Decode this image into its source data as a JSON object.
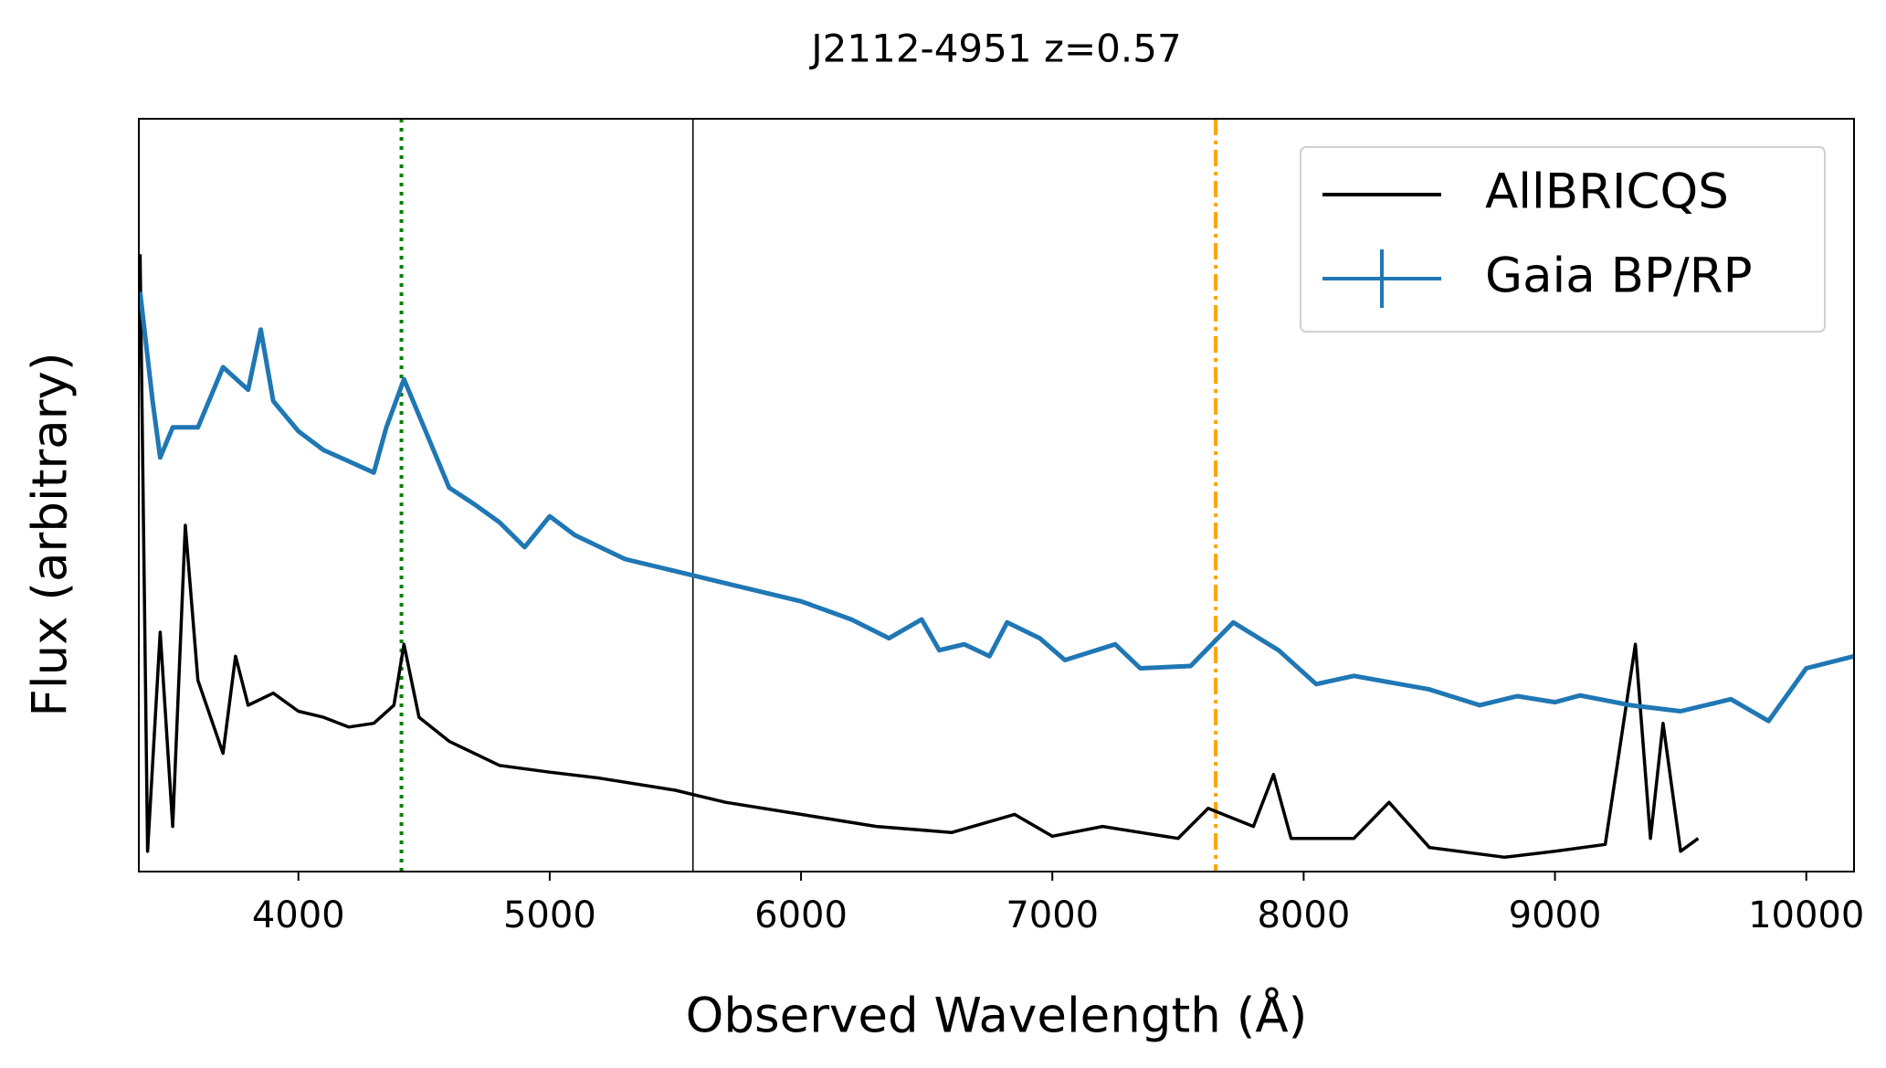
{
  "chart_data": {
    "type": "line",
    "title": "J2112-4951 z=0.57",
    "xlabel": "Observed Wavelength (Å)",
    "ylabel": "Flux (arbitrary)",
    "xlim": [
      3365,
      10190
    ],
    "ylim": [
      0,
      1
    ],
    "xticks": [
      4000,
      5000,
      6000,
      7000,
      8000,
      9000,
      10000
    ],
    "legend": "upper right",
    "vlines": [
      {
        "x": 4410,
        "color": "#008000",
        "style": "dotted"
      },
      {
        "x": 5570,
        "color": "#000000",
        "style": "solid"
      },
      {
        "x": 7650,
        "color": "#ffa500",
        "style": "dashdot"
      }
    ],
    "series": [
      {
        "name": "AllBRICQS",
        "color": "#000000",
        "x": [
          3370,
          3400,
          3450,
          3500,
          3550,
          3600,
          3700,
          3750,
          3800,
          3900,
          4000,
          4100,
          4200,
          4300,
          4380,
          4420,
          4480,
          4600,
          4800,
          5000,
          5200,
          5500,
          5700,
          6000,
          6300,
          6600,
          6850,
          7000,
          7200,
          7500,
          7620,
          7800,
          7880,
          7950,
          8200,
          8340,
          8500,
          8800,
          9000,
          9200,
          9320,
          9380,
          9430,
          9500,
          9570
        ],
        "values": [
          0.82,
          0.027,
          0.318,
          0.06,
          0.46,
          0.254,
          0.157,
          0.286,
          0.221,
          0.237,
          0.213,
          0.205,
          0.192,
          0.197,
          0.221,
          0.302,
          0.205,
          0.173,
          0.141,
          0.132,
          0.124,
          0.108,
          0.092,
          0.076,
          0.06,
          0.052,
          0.076,
          0.047,
          0.06,
          0.044,
          0.084,
          0.06,
          0.129,
          0.044,
          0.044,
          0.092,
          0.032,
          0.019,
          0.027,
          0.036,
          0.302,
          0.044,
          0.197,
          0.027,
          0.044
        ]
      },
      {
        "name": "Gaia BP/RP",
        "color": "#1f77b4",
        "x": [
          3370,
          3420,
          3450,
          3500,
          3600,
          3700,
          3800,
          3850,
          3900,
          4000,
          4100,
          4200,
          4300,
          4350,
          4420,
          4500,
          4600,
          4700,
          4800,
          4900,
          5000,
          5100,
          5300,
          5500,
          5700,
          6000,
          6200,
          6350,
          6480,
          6550,
          6650,
          6750,
          6820,
          6950,
          7050,
          7250,
          7350,
          7550,
          7720,
          7900,
          8050,
          8200,
          8500,
          8700,
          8850,
          9000,
          9100,
          9300,
          9500,
          9700,
          9850,
          10000,
          10190
        ],
        "values": [
          0.77,
          0.625,
          0.55,
          0.59,
          0.59,
          0.67,
          0.64,
          0.72,
          0.625,
          0.585,
          0.56,
          0.545,
          0.53,
          0.59,
          0.654,
          0.59,
          0.51,
          0.488,
          0.464,
          0.431,
          0.472,
          0.447,
          0.415,
          0.399,
          0.383,
          0.359,
          0.335,
          0.31,
          0.335,
          0.294,
          0.302,
          0.286,
          0.331,
          0.31,
          0.281,
          0.302,
          0.27,
          0.273,
          0.331,
          0.294,
          0.249,
          0.26,
          0.242,
          0.221,
          0.233,
          0.225,
          0.234,
          0.221,
          0.213,
          0.229,
          0.2,
          0.27,
          0.286
        ]
      }
    ]
  }
}
